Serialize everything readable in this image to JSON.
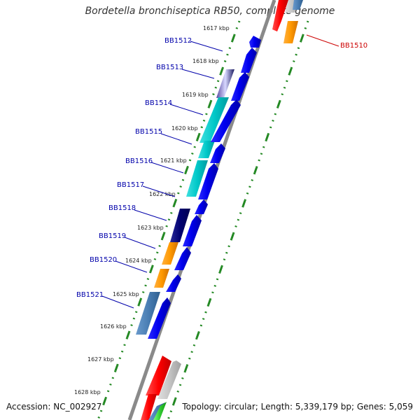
{
  "title": "Bordetella bronchiseptica RB50, complete genome",
  "accession": "Accession: NC_002927",
  "topology": "Topology: circular; Length: 5,339,179 bp; Genes: 5,059",
  "colors": {
    "backbone": "#8a8a8a",
    "tick": "#228822",
    "label_blue": "#0000aa",
    "label_red": "#cc0000"
  },
  "kbp_markers": [
    "1617 kbp",
    "1618 kbp",
    "1619 kbp",
    "1620 kbp",
    "1621 kbp",
    "1622 kbp",
    "1623 kbp",
    "1624 kbp",
    "1625 kbp",
    "1626 kbp",
    "1627 kbp",
    "1628 kbp"
  ],
  "gene_labels": [
    {
      "text": "BB1510",
      "color": "red"
    },
    {
      "text": "BB1512",
      "color": "blue"
    },
    {
      "text": "BB1513",
      "color": "blue"
    },
    {
      "text": "BB1514",
      "color": "blue"
    },
    {
      "text": "BB1515",
      "color": "blue"
    },
    {
      "text": "BB1516",
      "color": "blue"
    },
    {
      "text": "BB1517",
      "color": "blue"
    },
    {
      "text": "BB1518",
      "color": "blue"
    },
    {
      "text": "BB1519",
      "color": "blue"
    },
    {
      "text": "BB1520",
      "color": "blue"
    },
    {
      "text": "BB1521",
      "color": "blue"
    }
  ]
}
